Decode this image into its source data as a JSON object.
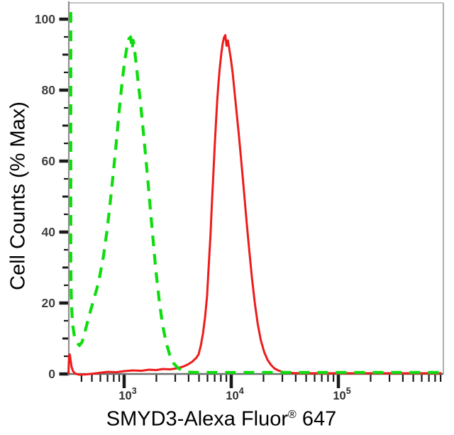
{
  "figure": {
    "background": "#ffffff"
  },
  "chart_data": {
    "type": "line",
    "description": "Flow cytometry overlay histogram: green dashed control population and red solid stained population",
    "xlabel_main": "SMYD3-Alexa Fluor",
    "xlabel_sup": "®",
    "xlabel_suffix": " 647",
    "ylabel": "Cell Counts (% Max)",
    "x_scale": "log",
    "grid": "off",
    "legend": "none",
    "xlim": [
      304.5,
      955000
    ],
    "ylim": [
      0,
      104.6
    ],
    "x_major_ticks": [
      {
        "value": 1000,
        "mantissa": "10",
        "exponent": "3"
      },
      {
        "value": 10000,
        "mantissa": "10",
        "exponent": "4"
      },
      {
        "value": 100000,
        "mantissa": "10",
        "exponent": "5"
      }
    ],
    "x_minor_ticks": [
      400,
      500,
      600,
      700,
      800,
      900,
      2000,
      3000,
      4000,
      5000,
      6000,
      7000,
      8000,
      9000,
      20000,
      30000,
      40000,
      50000,
      60000,
      70000,
      80000,
      90000,
      200000,
      300000,
      400000,
      500000,
      600000,
      700000,
      800000,
      900000
    ],
    "y_major_ticks": [
      {
        "value": 0,
        "label": "0"
      },
      {
        "value": 20,
        "label": "20"
      },
      {
        "value": 40,
        "label": "40"
      },
      {
        "value": 60,
        "label": "60"
      },
      {
        "value": 80,
        "label": "80"
      },
      {
        "value": 100,
        "label": "100"
      }
    ],
    "y_mid_ticks": [
      10,
      30,
      50,
      70,
      90
    ],
    "y_minor_ticks": [
      5,
      15,
      25,
      35,
      45,
      55,
      65,
      75,
      85,
      95
    ],
    "series": [
      {
        "name": "red-solid-smyd3",
        "style": "solid",
        "color": "#ee1b1b",
        "peak_x": 8800,
        "peak_y": 95.5,
        "points": [
          [
            302,
            0
          ],
          [
            304,
            2.5
          ],
          [
            307,
            5.2
          ],
          [
            311,
            5.5
          ],
          [
            316,
            4
          ],
          [
            323,
            2
          ],
          [
            333,
            0.8
          ],
          [
            350,
            0.1
          ],
          [
            380,
            -0.2
          ],
          [
            450,
            -0.1
          ],
          [
            550,
            0.2
          ],
          [
            700,
            0.6
          ],
          [
            850,
            0.5
          ],
          [
            1000,
            0.8
          ],
          [
            1200,
            1
          ],
          [
            1450,
            0.9
          ],
          [
            1700,
            1.2
          ],
          [
            2000,
            1.1
          ],
          [
            2300,
            1.4
          ],
          [
            2700,
            1.3
          ],
          [
            3100,
            1.6
          ],
          [
            3500,
            2
          ],
          [
            3900,
            2.6
          ],
          [
            4300,
            3.4
          ],
          [
            4700,
            4.5
          ],
          [
            4950,
            5.5
          ],
          [
            5200,
            8
          ],
          [
            5450,
            11.5
          ],
          [
            5700,
            16
          ],
          [
            5950,
            22
          ],
          [
            6150,
            30
          ],
          [
            6400,
            39
          ],
          [
            6600,
            48
          ],
          [
            6800,
            56
          ],
          [
            7000,
            64
          ],
          [
            7200,
            71
          ],
          [
            7400,
            77
          ],
          [
            7600,
            82
          ],
          [
            7800,
            86
          ],
          [
            8050,
            90
          ],
          [
            8300,
            93
          ],
          [
            8550,
            94.8
          ],
          [
            8800,
            95.5
          ],
          [
            9050,
            92.5
          ],
          [
            9300,
            94
          ],
          [
            9600,
            91.5
          ],
          [
            9900,
            89
          ],
          [
            10300,
            85
          ],
          [
            10700,
            80
          ],
          [
            11200,
            74
          ],
          [
            11800,
            67
          ],
          [
            12400,
            60
          ],
          [
            13100,
            52
          ],
          [
            13900,
            43
          ],
          [
            14700,
            35
          ],
          [
            15600,
            27
          ],
          [
            16600,
            20
          ],
          [
            17700,
            14
          ],
          [
            18900,
            9.5
          ],
          [
            20300,
            6.2
          ],
          [
            21800,
            4
          ],
          [
            23400,
            2.6
          ],
          [
            25200,
            1.6
          ],
          [
            27400,
            1
          ],
          [
            30000,
            0.6
          ],
          [
            33500,
            0.4
          ],
          [
            38000,
            0.25
          ],
          [
            45000,
            0.2
          ],
          [
            60000,
            0.2
          ],
          [
            90000,
            0.2
          ],
          [
            150000,
            0.2
          ],
          [
            300000,
            0.2
          ],
          [
            600000,
            0.2
          ],
          [
            920000,
            0.2
          ]
        ]
      },
      {
        "name": "green-dashed-control",
        "style": "dashed",
        "color": "#0ddd0d",
        "peak_x": 1150,
        "peak_y": 95,
        "points": [
          [
            318,
            102
          ],
          [
            318,
            60
          ],
          [
            318,
            30
          ],
          [
            322,
            20
          ],
          [
            330,
            14
          ],
          [
            342,
            11
          ],
          [
            360,
            9
          ],
          [
            382,
            8
          ],
          [
            405,
            9
          ],
          [
            432,
            12
          ],
          [
            458,
            15
          ],
          [
            488,
            18
          ],
          [
            520,
            21
          ],
          [
            556,
            24
          ],
          [
            596,
            28
          ],
          [
            640,
            33
          ],
          [
            690,
            40
          ],
          [
            740,
            48
          ],
          [
            795,
            57
          ],
          [
            850,
            66
          ],
          [
            905,
            75
          ],
          [
            955,
            82
          ],
          [
            1010,
            88
          ],
          [
            1060,
            92
          ],
          [
            1110,
            94.5
          ],
          [
            1150,
            95
          ],
          [
            1185,
            91.5
          ],
          [
            1215,
            94
          ],
          [
            1255,
            91
          ],
          [
            1300,
            87
          ],
          [
            1355,
            82
          ],
          [
            1415,
            77
          ],
          [
            1480,
            71
          ],
          [
            1560,
            64
          ],
          [
            1650,
            56
          ],
          [
            1750,
            47
          ],
          [
            1860,
            38
          ],
          [
            1980,
            29
          ],
          [
            2120,
            21
          ],
          [
            2280,
            14
          ],
          [
            2460,
            9
          ],
          [
            2660,
            5.5
          ],
          [
            2900,
            3
          ],
          [
            3200,
            1.6
          ],
          [
            3600,
            0.8
          ],
          [
            4100,
            0.5
          ],
          [
            4800,
            0.45
          ],
          [
            6000,
            0.45
          ],
          [
            8000,
            0.45
          ],
          [
            12000,
            0.45
          ],
          [
            20000,
            0.45
          ],
          [
            40000,
            0.45
          ],
          [
            80000,
            0.45
          ],
          [
            160000,
            0.45
          ],
          [
            320000,
            0.45
          ],
          [
            600000,
            0.45
          ],
          [
            920000,
            0.45
          ]
        ]
      }
    ],
    "colors": {
      "x_axis_line": "#6e6e6e",
      "y_axis_line": "#8f8f8f",
      "top_border": "#bcbcbc",
      "right_border": "#aeaeae",
      "tick": "#1a1a1a",
      "y_tick_label": "#3f3f3f",
      "x_tick_label": "#2e2e2e",
      "title": "#000000"
    }
  }
}
